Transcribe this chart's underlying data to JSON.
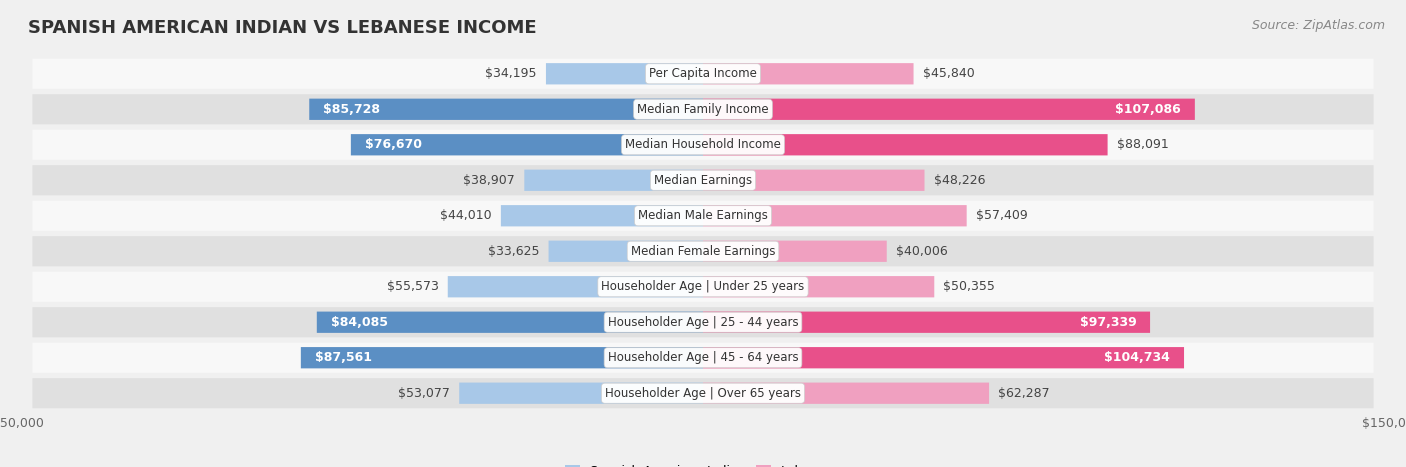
{
  "title": "SPANISH AMERICAN INDIAN VS LEBANESE INCOME",
  "source": "Source: ZipAtlas.com",
  "categories": [
    "Per Capita Income",
    "Median Family Income",
    "Median Household Income",
    "Median Earnings",
    "Median Male Earnings",
    "Median Female Earnings",
    "Householder Age | Under 25 years",
    "Householder Age | 25 - 44 years",
    "Householder Age | 45 - 64 years",
    "Householder Age | Over 65 years"
  ],
  "left_values": [
    34195,
    85728,
    76670,
    38907,
    44010,
    33625,
    55573,
    84085,
    87561,
    53077
  ],
  "right_values": [
    45840,
    107086,
    88091,
    48226,
    57409,
    40006,
    50355,
    97339,
    104734,
    62287
  ],
  "left_labels": [
    "$34,195",
    "$85,728",
    "$76,670",
    "$38,907",
    "$44,010",
    "$33,625",
    "$55,573",
    "$84,085",
    "$87,561",
    "$53,077"
  ],
  "right_labels": [
    "$45,840",
    "$107,086",
    "$88,091",
    "$48,226",
    "$57,409",
    "$40,006",
    "$50,355",
    "$97,339",
    "$104,734",
    "$62,287"
  ],
  "left_label_white": [
    false,
    true,
    true,
    false,
    false,
    false,
    false,
    true,
    true,
    false
  ],
  "right_label_white": [
    false,
    true,
    false,
    false,
    false,
    false,
    false,
    true,
    true,
    false
  ],
  "max_value": 150000,
  "left_color_light": "#a8c8e8",
  "left_color_dark": "#5b8fc4",
  "right_color_light": "#f0a0c0",
  "right_color_dark": "#e8508a",
  "label_left": "Spanish American Indian",
  "label_right": "Lebanese",
  "bg_color": "#f0f0f0",
  "row_bg_light": "#f8f8f8",
  "row_bg_dark": "#e8e8e8",
  "title_fontsize": 13,
  "source_fontsize": 9,
  "bar_label_fontsize": 9,
  "category_fontsize": 8.5,
  "axis_label_fontsize": 9
}
